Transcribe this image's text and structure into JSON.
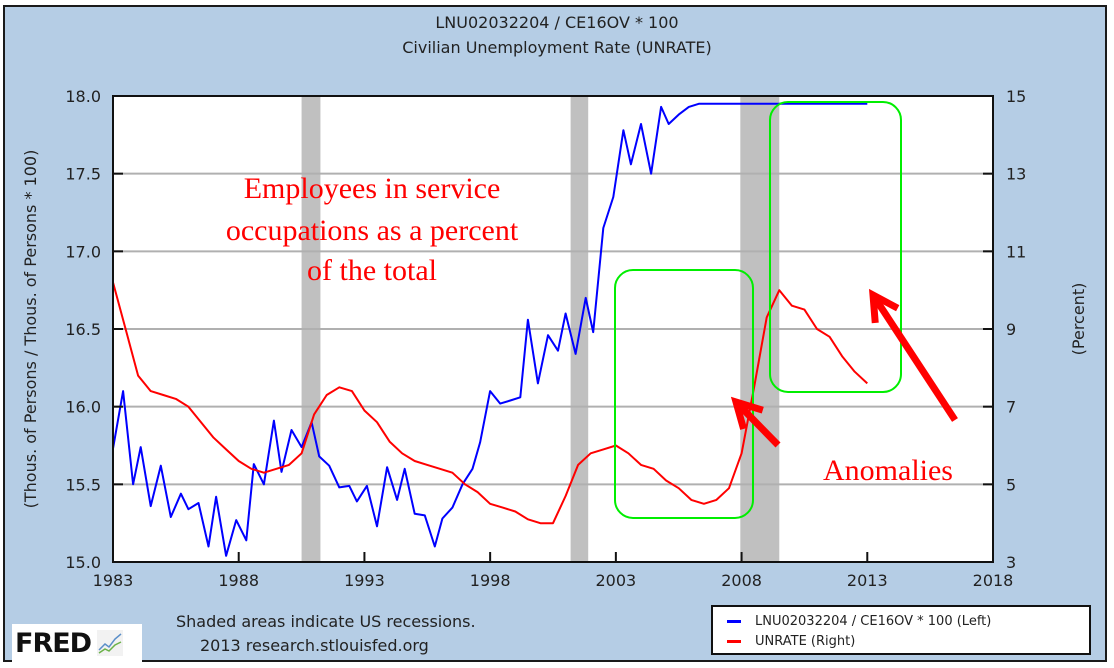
{
  "chart_data": {
    "type": "line",
    "title": "LNU02032204 / CE16OV * 100",
    "subtitle": "Civilian Unemployment Rate (UNRATE)",
    "xlabel": "",
    "ylabel_left": "(Thous. of Persons / Thous. of Persons * 100)",
    "ylabel_right": "(Percent)",
    "xlim": [
      1983,
      2018
    ],
    "ylim_left": [
      15.0,
      18.0
    ],
    "ylim_right": [
      3,
      15
    ],
    "x_ticks": [
      "1983",
      "1988",
      "1993",
      "1998",
      "2003",
      "2008",
      "2013",
      "2018"
    ],
    "y_ticks_left": [
      "15.0",
      "15.5",
      "16.0",
      "16.5",
      "17.0",
      "17.5",
      "18.0"
    ],
    "y_ticks_right": [
      "3",
      "5",
      "7",
      "9",
      "11",
      "13",
      "15"
    ],
    "grid": true,
    "recessions": [
      [
        1990.5,
        1991.25
      ],
      [
        2001.2,
        2001.9
      ],
      [
        2007.95,
        2009.5
      ]
    ],
    "series": [
      {
        "name": "LNU02032204 / CE16OV * 100 (Left)",
        "axis": "left",
        "color": "#0000ff",
        "x": [
          1983.0,
          1983.4,
          1983.8,
          1984.1,
          1984.5,
          1984.9,
          1985.3,
          1985.7,
          1986.0,
          1986.4,
          1986.8,
          1987.1,
          1987.5,
          1987.9,
          1988.3,
          1988.6,
          1989.0,
          1989.4,
          1989.7,
          1990.1,
          1990.5,
          1990.9,
          1991.2,
          1991.6,
          1992.0,
          1992.4,
          1992.7,
          1993.1,
          1993.5,
          1993.9,
          1994.3,
          1994.6,
          1995.0,
          1995.4,
          1995.8,
          1996.1,
          1996.5,
          1996.9,
          1997.3,
          1997.6,
          1998.0,
          1998.4,
          1998.8,
          1999.2,
          1999.5,
          1999.9,
          2000.3,
          2000.7,
          2001.0,
          2001.4,
          2001.8,
          2002.1,
          2002.5,
          2002.9,
          2003.3,
          2003.6,
          2004.0,
          2004.4,
          2004.8,
          2005.1,
          2005.5,
          2005.9,
          2006.3,
          2006.6,
          2007.0,
          2007.4,
          2007.8,
          2008.1,
          2008.5,
          2008.9,
          2009.2,
          2009.6,
          2010.0,
          2010.4,
          2010.7,
          2011.1,
          2011.5,
          2011.9,
          2012.2,
          2012.6,
          2013.0
        ],
        "values": [
          15.73,
          16.1,
          15.5,
          15.74,
          15.36,
          15.62,
          15.29,
          15.44,
          15.34,
          15.38,
          15.1,
          15.42,
          15.04,
          15.27,
          15.14,
          15.63,
          15.5,
          15.91,
          15.58,
          15.85,
          15.74,
          15.9,
          15.68,
          15.62,
          15.48,
          15.49,
          15.39,
          15.49,
          15.23,
          15.61,
          15.4,
          15.6,
          15.31,
          15.3,
          15.1,
          15.28,
          15.35,
          15.5,
          15.6,
          15.77,
          16.1,
          16.02,
          16.04,
          16.06,
          16.56,
          16.15,
          16.46,
          16.36,
          16.6,
          16.34,
          16.7,
          16.48,
          17.15,
          17.35,
          17.78,
          17.56,
          17.82,
          17.5,
          17.93,
          17.82,
          17.88,
          17.93,
          17.95,
          17.95,
          17.95,
          17.95,
          17.95,
          17.95,
          17.95,
          17.95,
          17.95,
          17.95,
          17.95,
          17.95,
          17.95,
          17.95,
          17.95,
          17.95,
          17.95,
          17.95,
          17.95
        ]
      },
      {
        "name": "UNRATE (Right)",
        "axis": "right",
        "color": "#ff0000",
        "x": [
          1983.0,
          1983.5,
          1984.0,
          1984.5,
          1985.0,
          1985.5,
          1986.0,
          1986.5,
          1987.0,
          1987.5,
          1988.0,
          1988.5,
          1989.0,
          1989.5,
          1990.0,
          1990.5,
          1991.0,
          1991.5,
          1992.0,
          1992.5,
          1993.0,
          1993.5,
          1994.0,
          1994.5,
          1995.0,
          1995.5,
          1996.0,
          1996.5,
          1997.0,
          1997.5,
          1998.0,
          1998.5,
          1999.0,
          1999.5,
          2000.0,
          2000.5,
          2001.0,
          2001.5,
          2002.0,
          2002.5,
          2003.0,
          2003.5,
          2004.0,
          2004.5,
          2005.0,
          2005.5,
          2006.0,
          2006.5,
          2007.0,
          2007.5,
          2008.0,
          2008.5,
          2009.0,
          2009.5,
          2010.0,
          2010.5,
          2011.0,
          2011.5,
          2012.0,
          2012.5,
          2013.0
        ],
        "values": [
          10.2,
          9.0,
          7.8,
          7.4,
          7.3,
          7.2,
          7.0,
          6.6,
          6.2,
          5.9,
          5.6,
          5.4,
          5.3,
          5.4,
          5.5,
          5.8,
          6.8,
          7.3,
          7.5,
          7.4,
          6.9,
          6.6,
          6.1,
          5.8,
          5.6,
          5.5,
          5.4,
          5.3,
          5.0,
          4.8,
          4.5,
          4.4,
          4.3,
          4.1,
          4.0,
          4.0,
          4.7,
          5.5,
          5.8,
          5.9,
          6.0,
          5.8,
          5.5,
          5.4,
          5.1,
          4.9,
          4.6,
          4.5,
          4.6,
          4.9,
          5.8,
          7.5,
          9.3,
          10.0,
          9.6,
          9.5,
          9.0,
          8.8,
          8.3,
          7.9,
          7.6
        ]
      }
    ],
    "annotations": {
      "service_label": [
        "Employees in service",
        "occupations as a percent",
        "of the total"
      ],
      "anomalies_label": "Anomalies"
    }
  },
  "footer": {
    "recession_note": "Shaded areas indicate US recessions.",
    "source": "2013 research.stlouisfed.org",
    "logo_text": "FRED"
  },
  "legend": {
    "items": [
      {
        "label": "LNU02032204 / CE16OV * 100 (Left)",
        "color": "#0000ff"
      },
      {
        "label": "UNRATE (Right)",
        "color": "#ff0000"
      }
    ]
  },
  "colors": {
    "background": "#b5cde5",
    "plot_bg": "#ffffff",
    "recession": "#c0c0c0",
    "grid": "#b0b0b0",
    "highlight_box": "#00ee00",
    "annotation": "#ff0000"
  }
}
